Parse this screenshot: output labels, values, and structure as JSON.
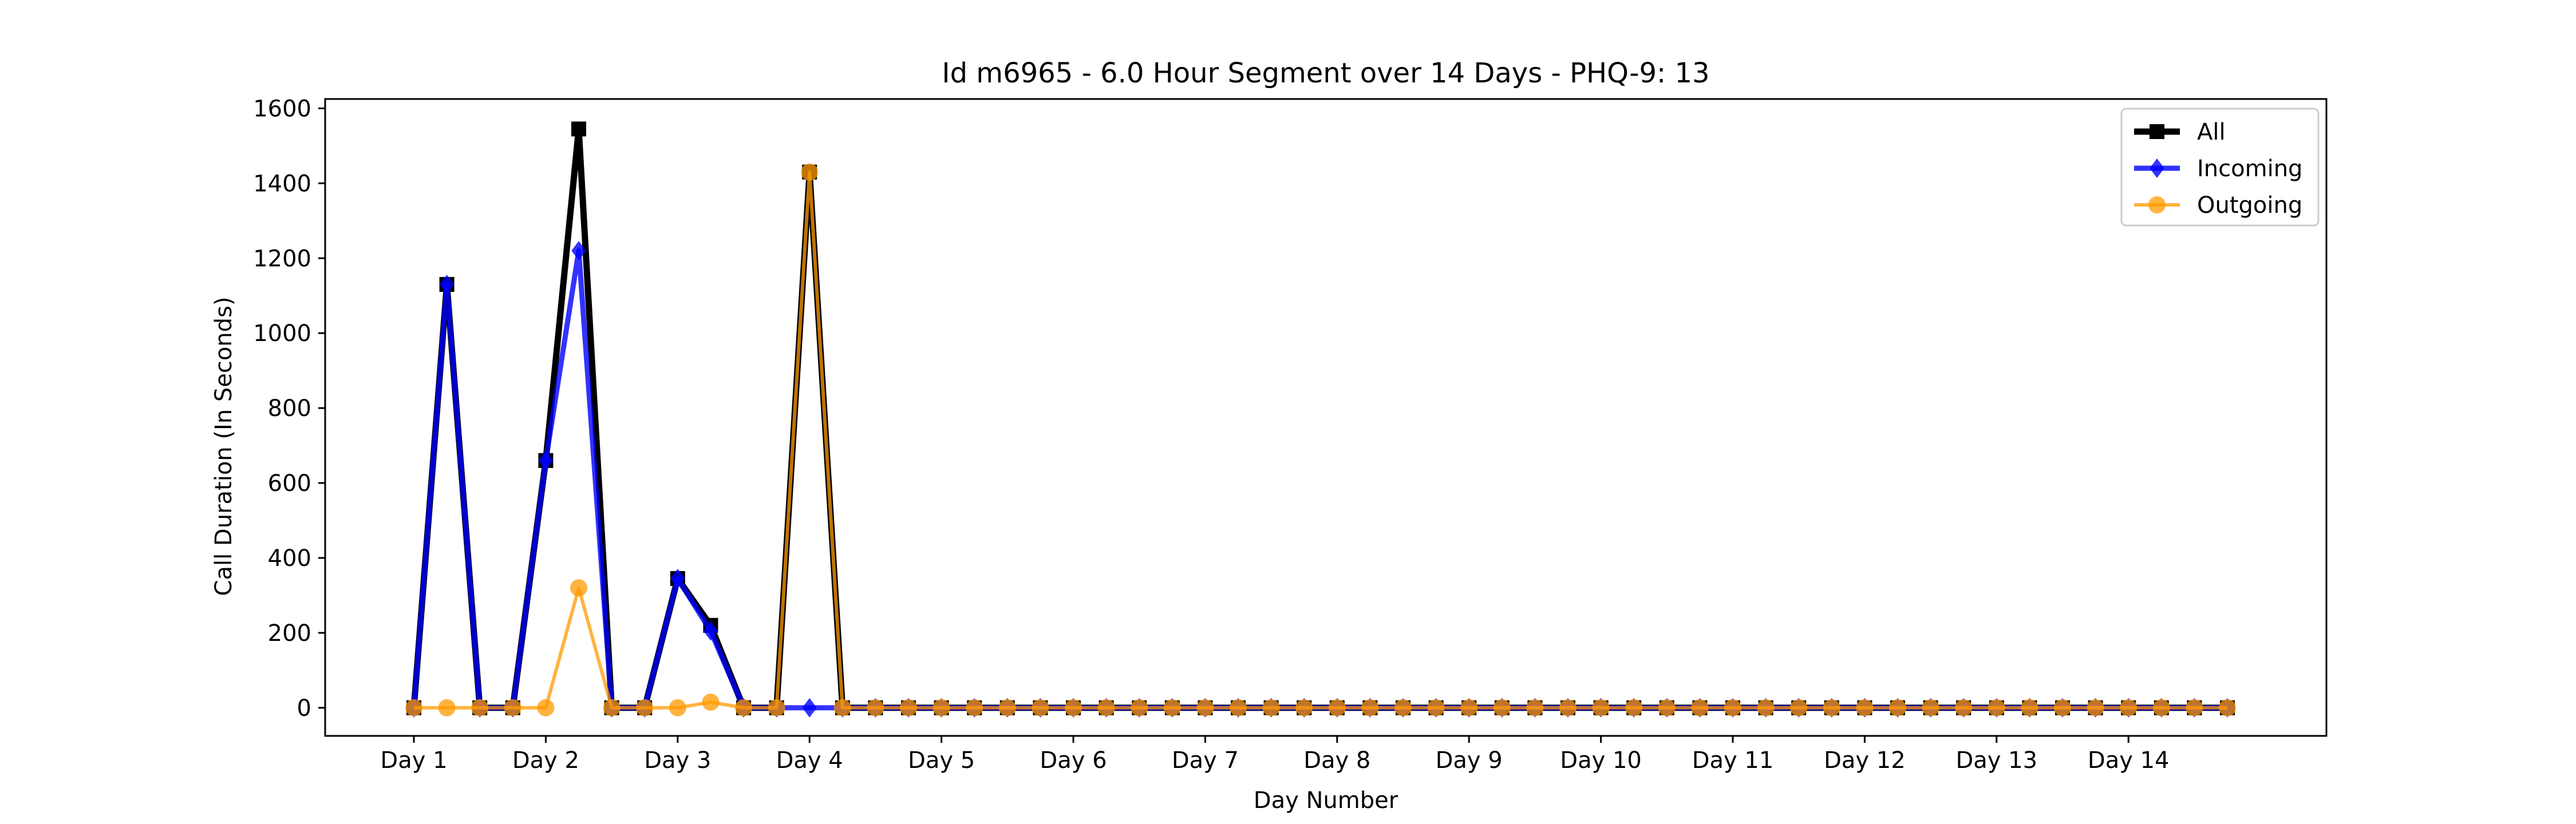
{
  "chart_data": {
    "type": "line",
    "title": "Id m6965 - 6.0 Hour Segment over 14 Days - PHQ-9: 13",
    "xlabel": "Day Number",
    "ylabel": "Call Duration (In Seconds)",
    "ylim": [
      -75,
      1625
    ],
    "y_ticks": [
      0,
      200,
      400,
      600,
      800,
      1000,
      1200,
      1400,
      1600
    ],
    "x_tick_labels": [
      "Day 1",
      "Day 2",
      "Day 3",
      "Day 4",
      "Day 5",
      "Day 6",
      "Day 7",
      "Day 8",
      "Day 9",
      "Day 10",
      "Day 11",
      "Day 12",
      "Day 13",
      "Day 14"
    ],
    "points_per_day": 4,
    "grid": false,
    "legend_position": "upper right",
    "series": [
      {
        "name": "All",
        "color": "#000000",
        "marker": "square",
        "values": [
          0,
          1130,
          0,
          0,
          660,
          1545,
          0,
          0,
          345,
          220,
          0,
          0,
          1430,
          0,
          0,
          0,
          0,
          0,
          0,
          0,
          0,
          0,
          0,
          0,
          0,
          0,
          0,
          0,
          0,
          0,
          0,
          0,
          0,
          0,
          0,
          0,
          0,
          0,
          0,
          0,
          0,
          0,
          0,
          0,
          0,
          0,
          0,
          0,
          0,
          0,
          0,
          0,
          0,
          0,
          0,
          0
        ]
      },
      {
        "name": "Incoming",
        "color": "#0000ff",
        "marker": "diamond",
        "values": [
          0,
          1130,
          0,
          0,
          660,
          1220,
          0,
          0,
          345,
          205,
          0,
          0,
          0,
          0,
          0,
          0,
          0,
          0,
          0,
          0,
          0,
          0,
          0,
          0,
          0,
          0,
          0,
          0,
          0,
          0,
          0,
          0,
          0,
          0,
          0,
          0,
          0,
          0,
          0,
          0,
          0,
          0,
          0,
          0,
          0,
          0,
          0,
          0,
          0,
          0,
          0,
          0,
          0,
          0,
          0,
          0
        ]
      },
      {
        "name": "Outgoing",
        "color": "#ff9900",
        "marker": "circle",
        "values": [
          0,
          0,
          0,
          0,
          0,
          320,
          0,
          0,
          0,
          15,
          0,
          0,
          1430,
          0,
          0,
          0,
          0,
          0,
          0,
          0,
          0,
          0,
          0,
          0,
          0,
          0,
          0,
          0,
          0,
          0,
          0,
          0,
          0,
          0,
          0,
          0,
          0,
          0,
          0,
          0,
          0,
          0,
          0,
          0,
          0,
          0,
          0,
          0,
          0,
          0,
          0,
          0,
          0,
          0,
          0,
          0
        ]
      }
    ]
  }
}
